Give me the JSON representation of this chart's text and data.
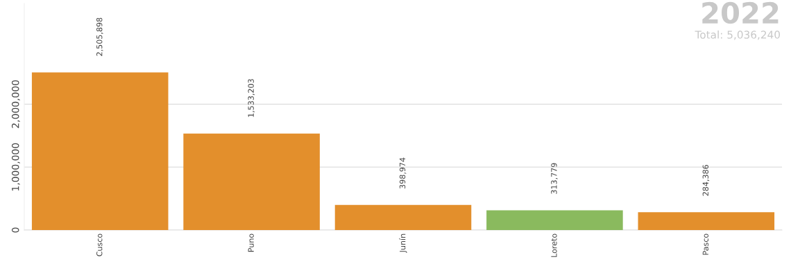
{
  "chart_data": {
    "type": "bar",
    "title": "2022",
    "subtitle": "Total: 5,036,240",
    "categories": [
      "Cusco",
      "Puno",
      "Junín",
      "Loreto",
      "Pasco"
    ],
    "values": [
      2505898,
      1533203,
      398974,
      313779,
      284386
    ],
    "colors": [
      "#e38f2c",
      "#e38f2c",
      "#e38f2c",
      "#8aba5e",
      "#e38f2c"
    ],
    "value_labels": [
      "2,505,898",
      "1,533,203",
      "398,974",
      "313,779",
      "284,386"
    ],
    "ylim": [
      0,
      3600000
    ],
    "yticks": [
      {
        "value": 0,
        "label": "0"
      },
      {
        "value": 1000000,
        "label": "1,000,000"
      },
      {
        "value": 2000000,
        "label": "2,000,000"
      }
    ],
    "grid": "y"
  }
}
